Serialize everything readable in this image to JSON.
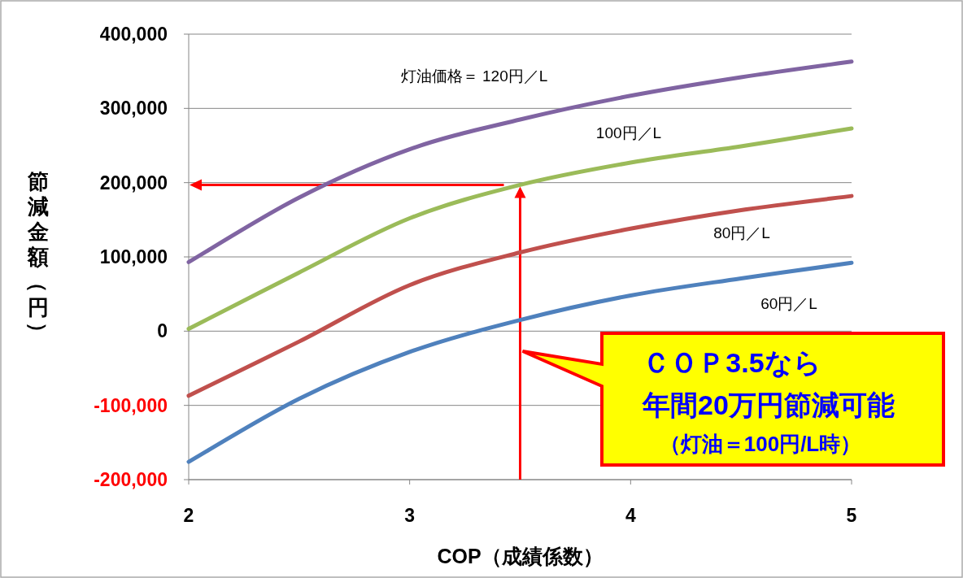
{
  "chart_data": {
    "type": "line",
    "xlabel": "COP（成績係数）",
    "ylabel": "節減金額（円）",
    "xlim": [
      2,
      5
    ],
    "xticks": [
      2,
      3,
      4,
      5
    ],
    "ylim": [
      -200000,
      400000
    ],
    "yticks": [
      {
        "value": -200000,
        "label": "-200,000"
      },
      {
        "value": -100000,
        "label": "-100,000"
      },
      0,
      {
        "value": 100000,
        "label": "100,000"
      },
      {
        "value": 200000,
        "label": "200,000"
      },
      {
        "value": 300000,
        "label": "300,000"
      },
      {
        "value": 400000,
        "label": "400,000"
      }
    ],
    "grid": "y",
    "legend": false,
    "marker": "none",
    "line_style": "solid",
    "x": [
      2,
      2.5,
      3,
      3.5,
      4,
      4.5,
      5
    ],
    "series": [
      {
        "name": "灯油価格＝ 120円／L",
        "color": "#8064a2",
        "values": [
          93000,
          180000,
          245000,
          285000,
          317000,
          342000,
          363000
        ]
      },
      {
        "name": "100円／L",
        "color": "#9bbb59",
        "values": [
          3000,
          79000,
          152000,
          197000,
          227000,
          249000,
          273000
        ]
      },
      {
        "name": "80円／L",
        "color": "#c0504d",
        "values": [
          -87000,
          -14000,
          62000,
          106000,
          138000,
          163000,
          182000
        ]
      },
      {
        "name": "60円／L",
        "color": "#4f81bd",
        "values": [
          -176000,
          -91000,
          -28000,
          15000,
          48000,
          71000,
          92000
        ]
      }
    ],
    "annotations": [
      "ＣＯＰ3.5なら",
      "年間20万円節減可能",
      "（灯油＝100円/L時）"
    ]
  }
}
